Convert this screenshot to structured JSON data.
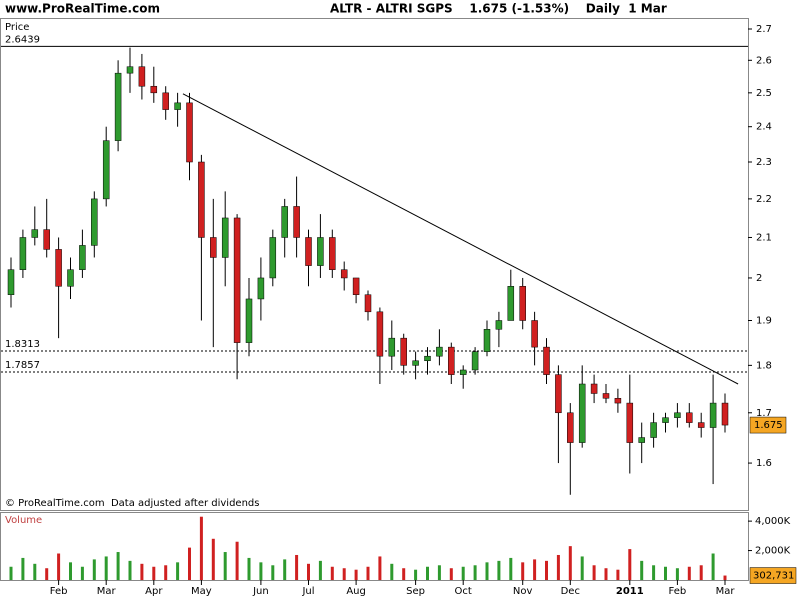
{
  "chart_data": [
    {
      "type": "candlestick",
      "source": "www.ProRealTime.com",
      "title": "ALTR - ALTRI SGPS    1.675 (-1.53%)    Daily  1 Mar",
      "label": "Price",
      "footer": "© ProRealTime.com  Data adjusted after dividends",
      "log_scale": true,
      "up_color": "#2e9a2e",
      "down_color": "#d02020",
      "categories": [
        null,
        null,
        null,
        null,
        "Feb",
        null,
        null,
        null,
        "Mar",
        null,
        null,
        null,
        "Apr",
        null,
        null,
        null,
        "May",
        null,
        null,
        null,
        null,
        "Jun",
        null,
        null,
        null,
        "Jul",
        null,
        null,
        null,
        "Aug",
        null,
        null,
        null,
        null,
        "Sep",
        null,
        null,
        null,
        "Oct",
        null,
        null,
        null,
        null,
        "Nov",
        null,
        null,
        null,
        "Dec",
        null,
        null,
        null,
        null,
        "2011",
        null,
        null,
        null,
        "Feb",
        null,
        null,
        null,
        "Mar"
      ],
      "open": [
        1.96,
        2.02,
        2.1,
        2.12,
        2.07,
        1.98,
        2.02,
        2.08,
        2.2,
        2.36,
        2.56,
        2.58,
        2.52,
        2.5,
        2.45,
        2.47,
        2.3,
        2.1,
        2.05,
        2.15,
        1.85,
        1.95,
        2.0,
        2.1,
        2.18,
        2.1,
        2.03,
        2.1,
        2.02,
        2.0,
        1.96,
        1.92,
        1.82,
        1.86,
        1.8,
        1.81,
        1.82,
        1.84,
        1.78,
        1.79,
        1.83,
        1.88,
        1.9,
        1.98,
        1.9,
        1.84,
        1.78,
        1.7,
        1.64,
        1.76,
        1.74,
        1.73,
        1.72,
        1.64,
        1.65,
        1.68,
        1.69,
        1.7,
        1.68,
        1.67,
        1.72
      ],
      "high": [
        2.05,
        2.12,
        2.18,
        2.2,
        2.1,
        2.05,
        2.12,
        2.22,
        2.4,
        2.6,
        2.64,
        2.62,
        2.58,
        2.52,
        2.5,
        2.5,
        2.32,
        2.2,
        2.22,
        2.16,
        2.0,
        2.05,
        2.12,
        2.2,
        2.26,
        2.12,
        2.16,
        2.12,
        2.04,
        2.0,
        1.97,
        1.93,
        1.9,
        1.87,
        1.83,
        1.84,
        1.88,
        1.85,
        1.8,
        1.84,
        1.9,
        1.92,
        2.02,
        2.0,
        1.92,
        1.86,
        1.8,
        1.72,
        1.8,
        1.78,
        1.76,
        1.75,
        1.78,
        1.68,
        1.7,
        1.7,
        1.72,
        1.72,
        1.7,
        1.78,
        1.74
      ],
      "low": [
        1.93,
        2.0,
        2.08,
        2.05,
        1.86,
        1.95,
        2.0,
        2.05,
        2.18,
        2.33,
        2.5,
        2.48,
        2.47,
        2.42,
        2.4,
        2.25,
        1.9,
        1.84,
        1.98,
        1.77,
        1.82,
        1.9,
        1.98,
        2.05,
        2.05,
        1.98,
        2.0,
        2.0,
        1.97,
        1.94,
        1.9,
        1.76,
        1.79,
        1.78,
        1.77,
        1.78,
        1.8,
        1.76,
        1.75,
        1.78,
        1.82,
        1.84,
        1.9,
        1.88,
        1.8,
        1.76,
        1.6,
        1.54,
        1.63,
        1.72,
        1.72,
        1.7,
        1.58,
        1.6,
        1.63,
        1.66,
        1.67,
        1.67,
        1.65,
        1.56,
        1.66
      ],
      "close": [
        2.02,
        2.1,
        2.12,
        2.07,
        1.98,
        2.02,
        2.08,
        2.2,
        2.36,
        2.56,
        2.58,
        2.52,
        2.5,
        2.45,
        2.47,
        2.3,
        2.1,
        2.05,
        2.15,
        1.85,
        1.95,
        2.0,
        2.1,
        2.18,
        2.1,
        2.03,
        2.1,
        2.02,
        2.0,
        1.96,
        1.92,
        1.82,
        1.86,
        1.8,
        1.81,
        1.82,
        1.84,
        1.78,
        1.79,
        1.83,
        1.88,
        1.9,
        1.98,
        1.9,
        1.84,
        1.78,
        1.7,
        1.64,
        1.76,
        1.74,
        1.73,
        1.72,
        1.64,
        1.65,
        1.68,
        1.69,
        1.7,
        1.68,
        1.67,
        1.72,
        1.675
      ],
      "ylim": [
        1.512,
        2.736
      ],
      "yticks": [
        1.6,
        1.7,
        1.8,
        1.9,
        2,
        2.1,
        2.2,
        2.3,
        2.4,
        2.5,
        2.6,
        2.7
      ],
      "reference_lines": [
        2.6439,
        1.8313,
        1.7857
      ],
      "trendline": {
        "x": [
          14.45,
          61.1
        ],
        "y": [
          2.497,
          1.76
        ]
      }
    },
    {
      "type": "bar",
      "label": "Volume",
      "values": [
        900000,
        1500000,
        1100000,
        800000,
        1800000,
        1200000,
        900000,
        1400000,
        1600000,
        1900000,
        1300000,
        1100000,
        900000,
        1000000,
        1200000,
        2200000,
        4300000,
        2800000,
        1900000,
        2600000,
        1500000,
        1200000,
        1000000,
        1400000,
        1700000,
        1100000,
        1300000,
        900000,
        800000,
        700000,
        900000,
        1600000,
        1100000,
        800000,
        700000,
        900000,
        1000000,
        800000,
        900000,
        1000000,
        1200000,
        1300000,
        1500000,
        1200000,
        1400000,
        1300000,
        1700000,
        2300000,
        1600000,
        1000000,
        800000,
        700000,
        2100000,
        1300000,
        1000000,
        900000,
        800000,
        900000,
        1000000,
        1800000,
        302731
      ],
      "ylim": [
        0,
        4620000
      ],
      "yticks": [
        {
          "value": 2000000,
          "label": "2,000K"
        },
        {
          "value": 4000000,
          "label": "4,000K"
        }
      ],
      "current": {
        "value": 302731,
        "label": "302,731"
      }
    }
  ]
}
